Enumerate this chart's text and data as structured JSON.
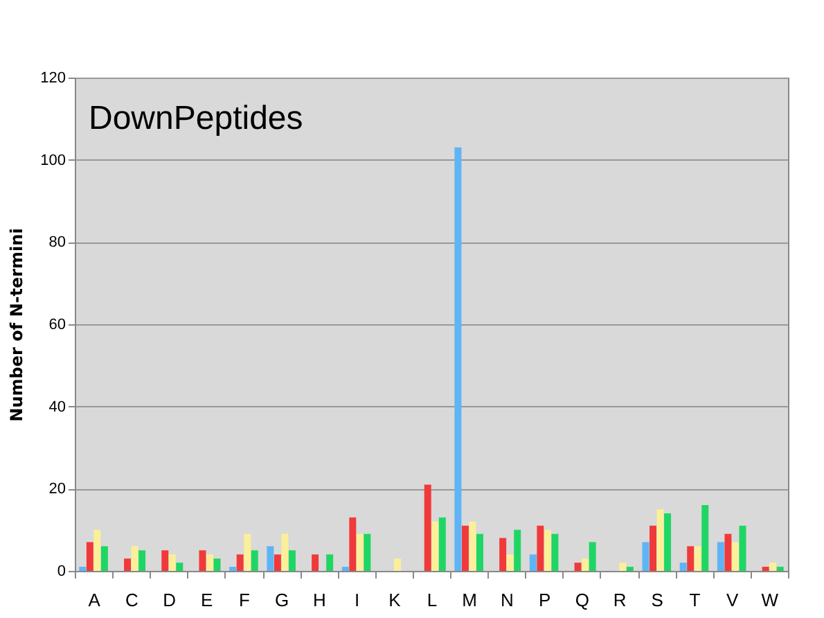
{
  "chart_data": {
    "type": "bar",
    "title": "DownPeptides",
    "ylabel": "Number of N-termini",
    "categories": [
      "A",
      "C",
      "D",
      "E",
      "F",
      "G",
      "H",
      "I",
      "K",
      "L",
      "M",
      "N",
      "P",
      "Q",
      "R",
      "S",
      "T",
      "V",
      "W"
    ],
    "series": [
      {
        "color": "#5fb4f5",
        "values": [
          1,
          0,
          0,
          0,
          1,
          6,
          0,
          1,
          0,
          0,
          103,
          0,
          4,
          0,
          0,
          7,
          2,
          7,
          0
        ]
      },
      {
        "color": "#f03a3a",
        "values": [
          7,
          3,
          5,
          5,
          4,
          4,
          4,
          13,
          0,
          21,
          11,
          8,
          11,
          2,
          0,
          11,
          6,
          9,
          1
        ]
      },
      {
        "color": "#fcef9a",
        "values": [
          10,
          6,
          4,
          4,
          9,
          9,
          0,
          9,
          3,
          12,
          12,
          4,
          10,
          3,
          2,
          15,
          6,
          7,
          2
        ]
      },
      {
        "color": "#1fd664",
        "values": [
          6,
          5,
          2,
          3,
          5,
          5,
          4,
          9,
          0,
          13,
          9,
          10,
          9,
          7,
          1,
          14,
          16,
          11,
          1
        ]
      }
    ],
    "ylim": [
      0,
      120
    ],
    "yticks": [
      0,
      20,
      40,
      60,
      80,
      100,
      120
    ],
    "grid": "y",
    "legend": false
  }
}
